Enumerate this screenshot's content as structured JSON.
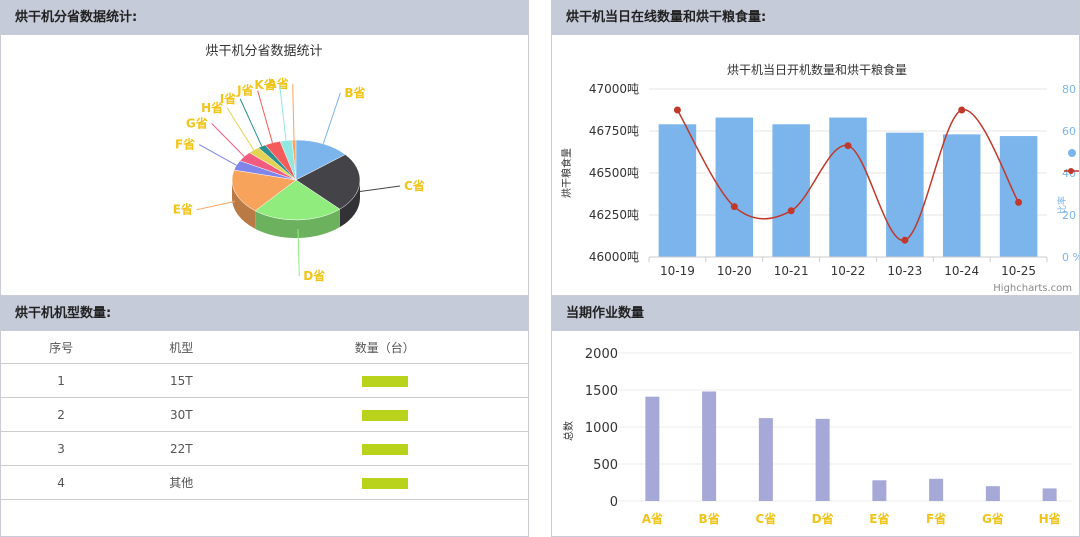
{
  "panels": {
    "province_stats": {
      "header": "烘干机分省数据统计:"
    },
    "online_grain": {
      "header": "烘干机当日在线数量和烘干粮食量:"
    },
    "model_count": {
      "header": "烘干机机型数量:"
    },
    "current_jobs": {
      "header": "当期作业数量"
    }
  },
  "model_table": {
    "columns": [
      "序号",
      "机型",
      "数量（台）"
    ],
    "rows": [
      {
        "index": "1",
        "model": "15T"
      },
      {
        "index": "2",
        "model": "30T"
      },
      {
        "index": "3",
        "model": "22T"
      },
      {
        "index": "4",
        "model": "其他"
      }
    ],
    "bar_color": "#b9d21c"
  },
  "credits": "Highcharts.com",
  "chart_data": [
    {
      "type": "pie",
      "title": "烘干机分省数据统计",
      "labels": [
        "A省",
        "B省",
        "C省",
        "D省",
        "E省",
        "F省",
        "G省",
        "H省",
        "I省",
        "J省",
        "K省"
      ],
      "values": [
        1,
        14,
        24,
        23,
        18,
        4,
        4,
        3,
        2,
        4,
        3
      ],
      "colors": [
        "#f7a35c",
        "#7cb5ec",
        "#434348",
        "#90ed7d",
        "#f7a35c",
        "#8085e9",
        "#f15c80",
        "#e4d354",
        "#2b908f",
        "#f45b5b",
        "#91e8e1"
      ]
    },
    {
      "type": "bar",
      "title": "烘干机当日开机数量和烘干粮食量",
      "categories": [
        "10-19",
        "10-20",
        "10-21",
        "10-22",
        "10-23",
        "10-24",
        "10-25"
      ],
      "ylabel": "烘干粮食量",
      "ylim": [
        46000,
        47000
      ],
      "yticks": [
        "46000吨",
        "46250吨",
        "46500吨",
        "46750吨",
        "47000吨"
      ],
      "y2ticks": [
        "0 %",
        "20 %",
        "40 %",
        "60 %",
        "80 %"
      ],
      "y2label": "比率",
      "series": [
        {
          "type": "bar",
          "values": [
            46790,
            46830,
            46790,
            46830,
            46740,
            46730,
            46720
          ],
          "color": "#7cb5ec"
        },
        {
          "type": "spline",
          "values": [
            70,
            24,
            22,
            53,
            8,
            70,
            26
          ],
          "color": "#c0392b"
        }
      ]
    },
    {
      "type": "bar",
      "categories": [
        "A省",
        "B省",
        "C省",
        "D省",
        "E省",
        "F省",
        "G省",
        "H省"
      ],
      "values": [
        1410,
        1480,
        1120,
        1110,
        280,
        300,
        200,
        170
      ],
      "ylabel": "总数",
      "ylim": [
        0,
        2000
      ],
      "yticks": [
        "0",
        "500",
        "1000",
        "1500",
        "2000"
      ],
      "color": "#a6a8d8"
    }
  ]
}
